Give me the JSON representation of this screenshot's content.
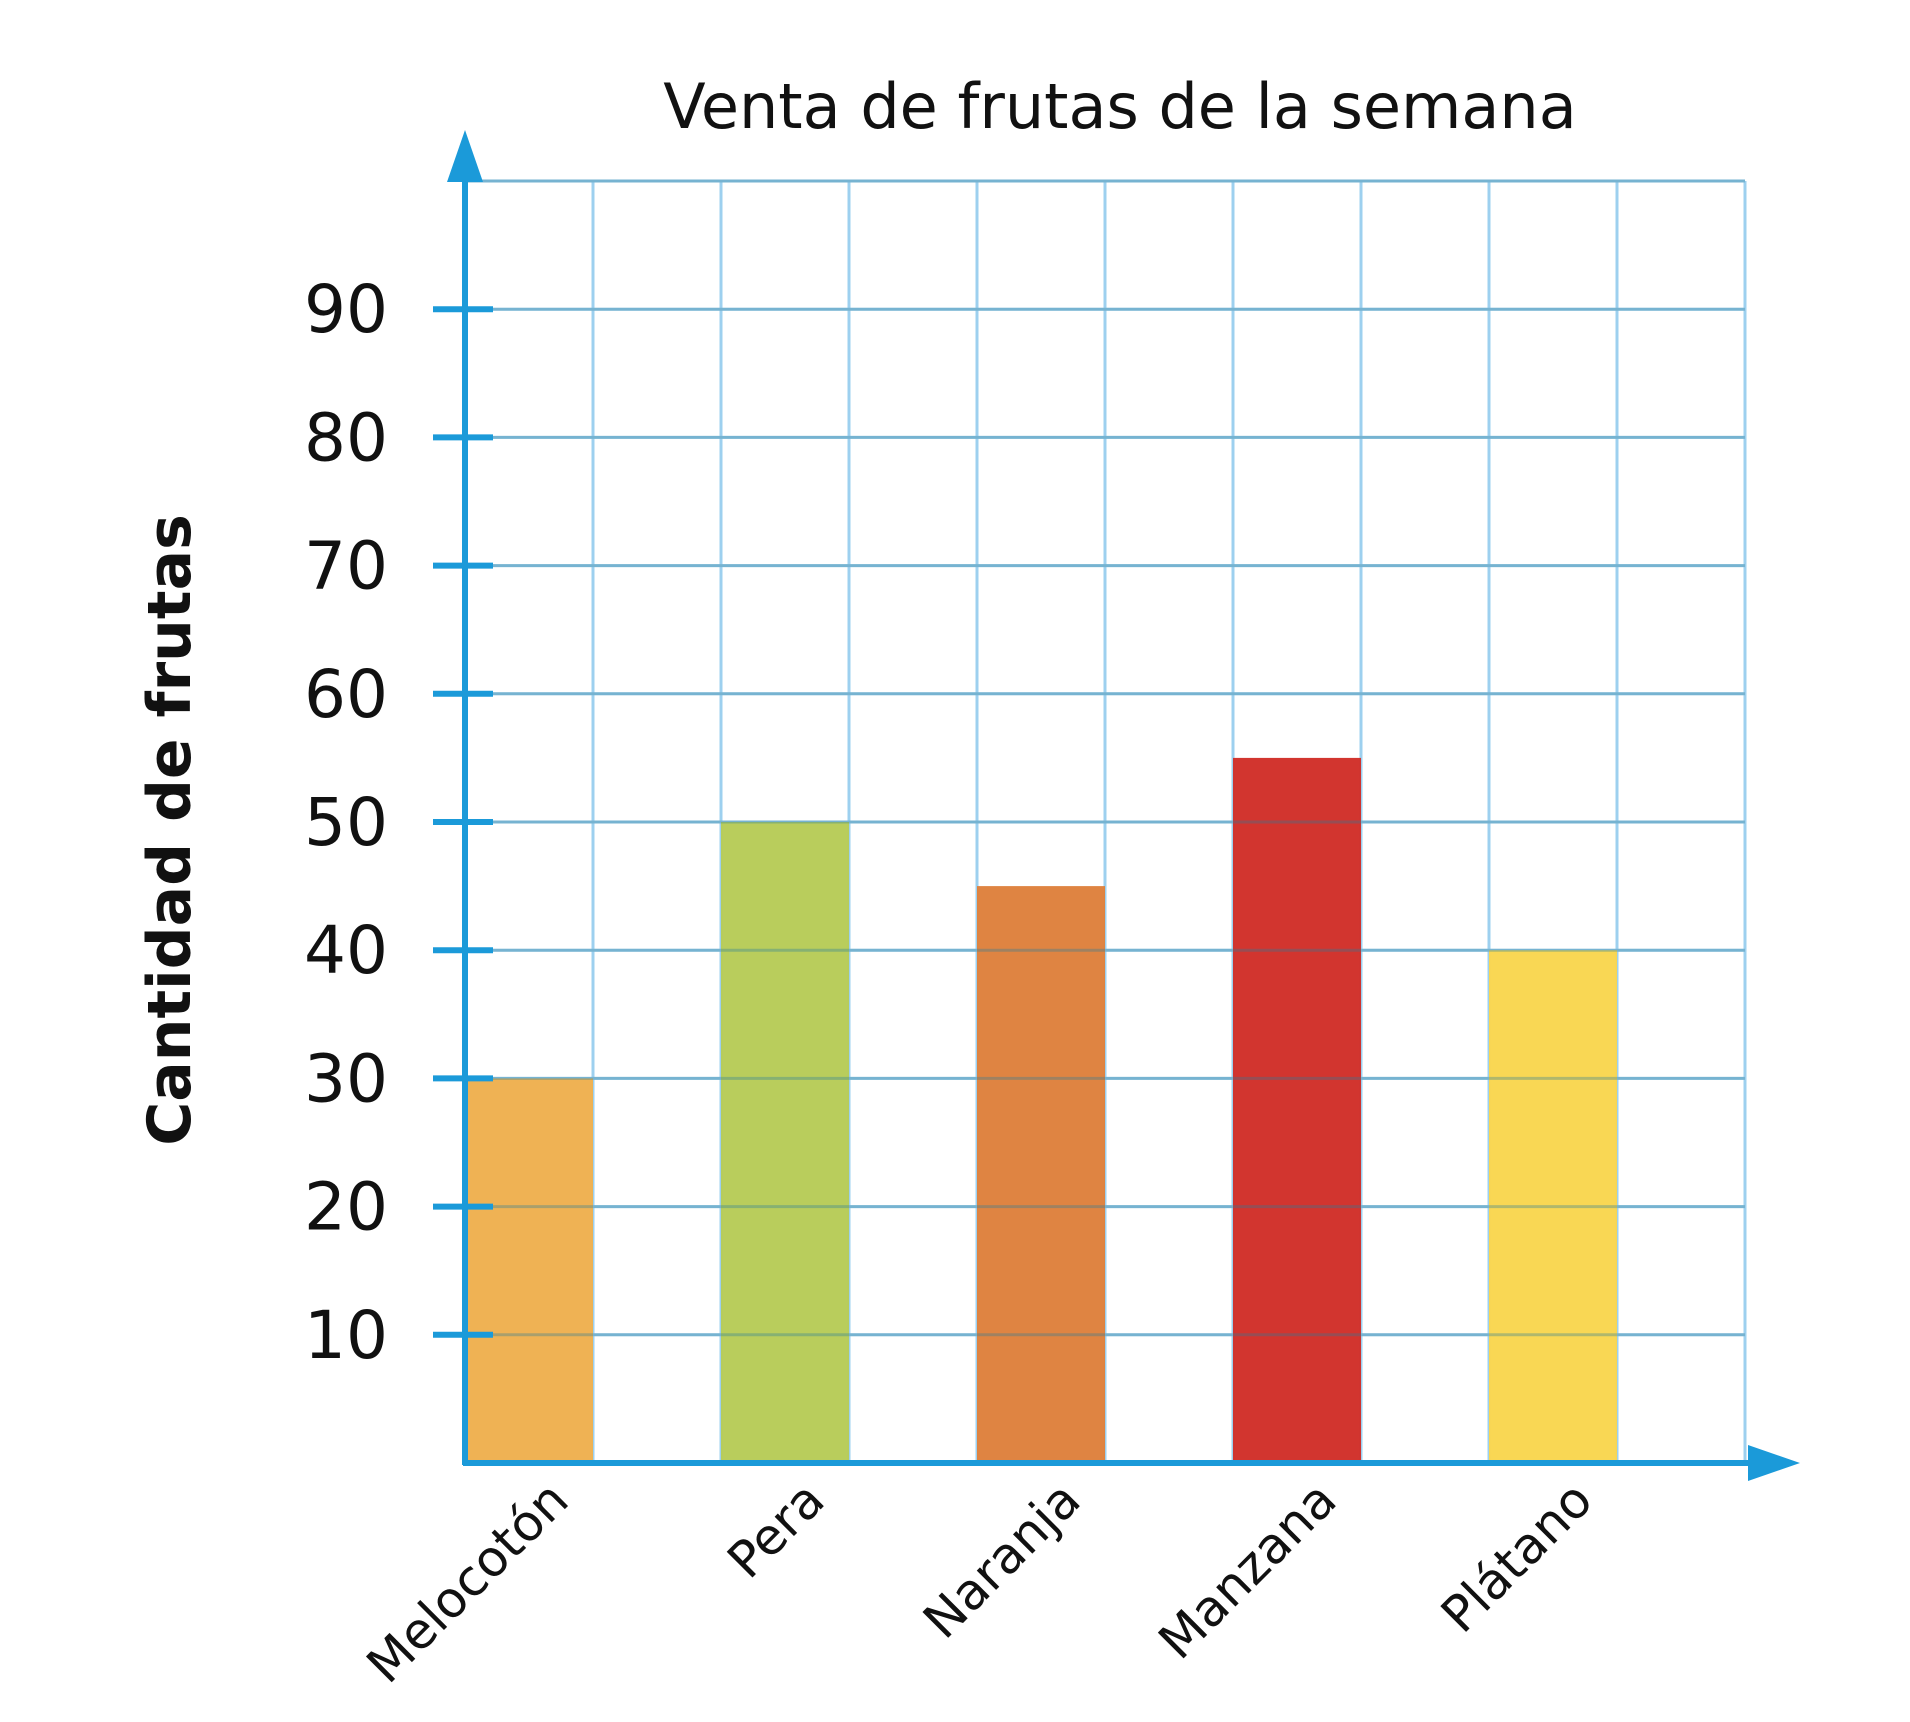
{
  "chart_data": {
    "type": "bar",
    "title": "Venta de frutas de la semana",
    "ylabel": "Cantidad de frutas",
    "xlabel": "",
    "categories": [
      "Melocotón",
      "Pera",
      "Naranja",
      "Manzana",
      "Plátano"
    ],
    "values": [
      30,
      50,
      45,
      55,
      40
    ],
    "bar_colors": [
      "#EEB04E",
      "#B7CB57",
      "#DE803C",
      "#D12E28",
      "#F9D64E"
    ],
    "ylim": [
      0,
      100
    ],
    "yticks": [
      10,
      20,
      30,
      40,
      50,
      60,
      70,
      80,
      90
    ],
    "grid": true,
    "grid_color": "#9DD0EF",
    "axis_color": "#1B9AD9",
    "legend": "none"
  }
}
